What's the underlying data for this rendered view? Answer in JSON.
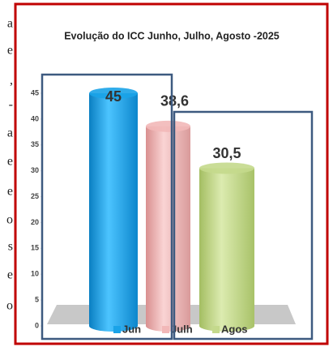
{
  "page_fragments": [
    "a",
    "e",
    ",",
    "-",
    "a",
    "e",
    "e",
    "o",
    "s",
    "e",
    "o"
  ],
  "chart_data": {
    "type": "bar",
    "title": "Evolução do ICC Junho, Julho, Agosto -2025",
    "categories": [
      "Jun",
      "Julh",
      "Agos"
    ],
    "values": [
      45,
      38.6,
      30.5
    ],
    "value_labels": [
      "45",
      "38,6",
      "30,5"
    ],
    "colors": [
      "#1aa3e8",
      "#f2b8b8",
      "#c4d98c"
    ],
    "ylim": [
      0,
      45
    ],
    "yticks": [
      0,
      5,
      10,
      15,
      20,
      25,
      30,
      35,
      40,
      45
    ],
    "legend": "bottom"
  }
}
